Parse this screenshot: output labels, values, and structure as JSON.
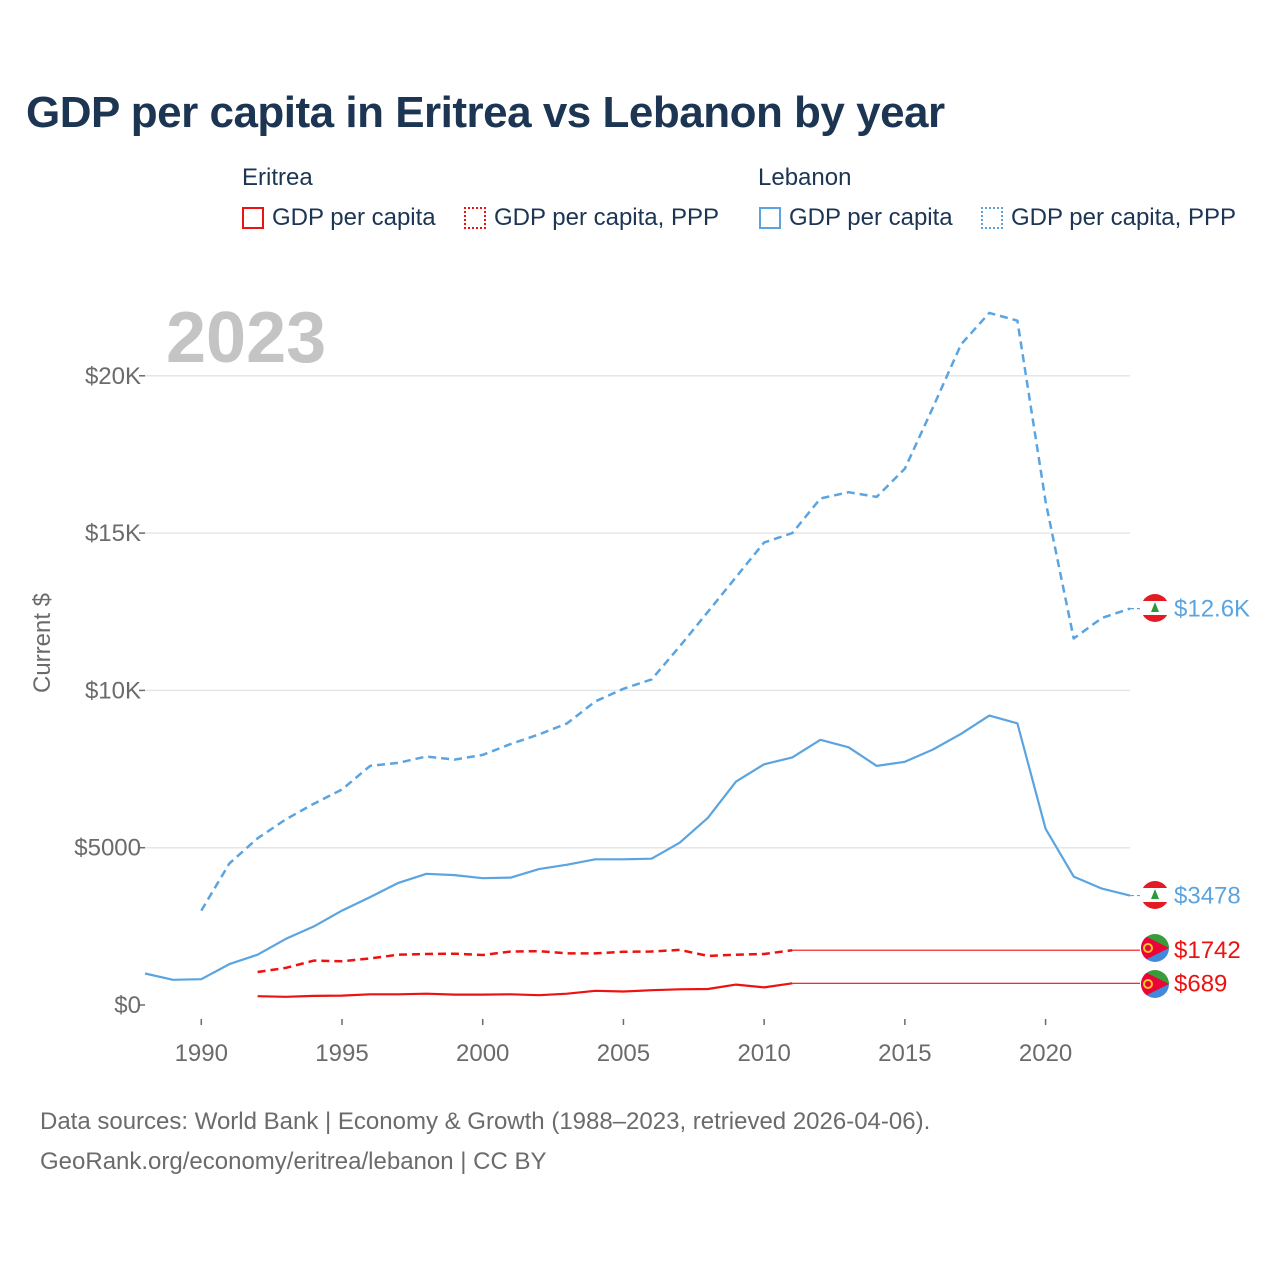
{
  "title": "GDP per capita in Eritrea vs Lebanon by year",
  "legend": {
    "eritrea": {
      "name": "Eritrea",
      "gdp": "GDP per capita",
      "ppp": "GDP per capita, PPP",
      "color": "#ee1111"
    },
    "lebanon": {
      "name": "Lebanon",
      "gdp": "GDP per capita",
      "ppp": "GDP per capita, PPP",
      "color": "#5ba4e0"
    }
  },
  "footer": {
    "line1": "Data sources: World Bank | Economy & Growth (1988–2023, retrieved 2026-04-06).",
    "line2": "GeoRank.org/economy/eritrea/lebanon | CC BY"
  },
  "chart_data": {
    "type": "line",
    "year_label": "2023",
    "ylabel": "Current $",
    "xlim": [
      1988,
      2023
    ],
    "ylim": [
      0,
      22000
    ],
    "x_ticks": [
      1990,
      1995,
      2000,
      2005,
      2010,
      2015,
      2020
    ],
    "x_tick_labels": [
      "1990",
      "1995",
      "2000",
      "2005",
      "2010",
      "2015",
      "2020"
    ],
    "y_ticks": [
      0,
      5000,
      10000,
      15000,
      20000
    ],
    "y_tick_labels": [
      "$0",
      "$5000",
      "$10K",
      "$15K",
      "$20K"
    ],
    "grid": true,
    "series": [
      {
        "name": "Lebanon GDP per capita, PPP",
        "country": "lebanon",
        "color": "#5ba4e0",
        "dash": true,
        "end_label": "$12.6K",
        "x": [
          1990,
          1991,
          1992,
          1993,
          1994,
          1995,
          1996,
          1997,
          1998,
          1999,
          2000,
          2001,
          2002,
          2003,
          2004,
          2005,
          2006,
          2007,
          2008,
          2009,
          2010,
          2011,
          2012,
          2013,
          2014,
          2015,
          2016,
          2017,
          2018,
          2019,
          2020,
          2021,
          2022,
          2023
        ],
        "values": [
          3000,
          4500,
          5300,
          5900,
          6400,
          6850,
          7600,
          7700,
          7900,
          7800,
          7950,
          8300,
          8600,
          8950,
          9650,
          10050,
          10350,
          11400,
          12500,
          13600,
          14700,
          15000,
          16100,
          16300,
          16150,
          17050,
          19000,
          21000,
          22000,
          21750,
          16000,
          11650,
          12300,
          12600
        ]
      },
      {
        "name": "Lebanon GDP per capita",
        "country": "lebanon",
        "color": "#5ba4e0",
        "dash": false,
        "end_label": "$3478",
        "x": [
          1988,
          1989,
          1990,
          1991,
          1992,
          1993,
          1994,
          1995,
          1996,
          1997,
          1998,
          1999,
          2000,
          2001,
          2002,
          2003,
          2004,
          2005,
          2006,
          2007,
          2008,
          2009,
          2010,
          2011,
          2012,
          2013,
          2014,
          2015,
          2016,
          2017,
          2018,
          2019,
          2020,
          2021,
          2022,
          2023
        ],
        "values": [
          1000,
          800,
          820,
          1300,
          1600,
          2100,
          2500,
          3000,
          3430,
          3880,
          4170,
          4130,
          4030,
          4050,
          4320,
          4460,
          4630,
          4630,
          4650,
          5160,
          5950,
          7100,
          7650,
          7870,
          8430,
          8190,
          7600,
          7730,
          8120,
          8620,
          9200,
          8950,
          5600,
          4080,
          3700,
          3478
        ]
      },
      {
        "name": "Eritrea GDP per capita, PPP",
        "country": "eritrea",
        "color": "#ee1111",
        "dash": true,
        "end_label": "$1742",
        "hold_from": 2011,
        "x": [
          1992,
          1993,
          1994,
          1995,
          1996,
          1997,
          1998,
          1999,
          2000,
          2001,
          2002,
          2003,
          2004,
          2005,
          2006,
          2007,
          2008,
          2009,
          2010,
          2011
        ],
        "values": [
          1050,
          1180,
          1410,
          1390,
          1480,
          1600,
          1620,
          1630,
          1590,
          1700,
          1710,
          1640,
          1640,
          1690,
          1700,
          1750,
          1560,
          1600,
          1620,
          1742
        ]
      },
      {
        "name": "Eritrea GDP per capita",
        "country": "eritrea",
        "color": "#ee1111",
        "dash": false,
        "end_label": "$689",
        "hold_from": 2011,
        "x": [
          1992,
          1993,
          1994,
          1995,
          1996,
          1997,
          1998,
          1999,
          2000,
          2001,
          2002,
          2003,
          2004,
          2005,
          2006,
          2007,
          2008,
          2009,
          2010,
          2011
        ],
        "values": [
          280,
          260,
          290,
          300,
          340,
          340,
          360,
          330,
          330,
          340,
          310,
          360,
          450,
          430,
          470,
          500,
          510,
          650,
          560,
          689
        ]
      }
    ]
  }
}
